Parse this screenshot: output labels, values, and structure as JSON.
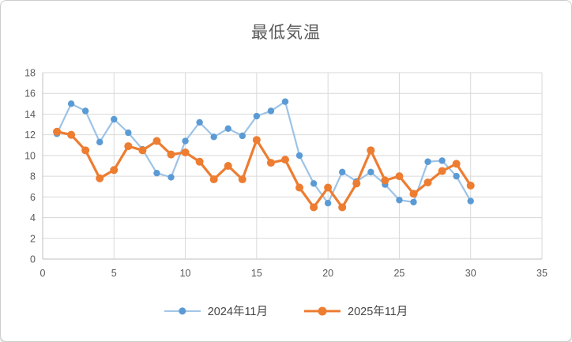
{
  "chart_data": {
    "type": "line",
    "title": "最低気温",
    "x": [
      1,
      2,
      3,
      4,
      5,
      6,
      7,
      8,
      9,
      10,
      11,
      12,
      13,
      14,
      15,
      16,
      17,
      18,
      19,
      20,
      21,
      22,
      23,
      24,
      25,
      26,
      27,
      28,
      29,
      30
    ],
    "series": [
      {
        "name": "2024年11月",
        "line_color": "#9DC3E6",
        "marker_color": "#5B9BD5",
        "values": [
          12.1,
          15.0,
          14.3,
          11.3,
          13.5,
          12.2,
          10.6,
          8.3,
          7.9,
          11.4,
          13.2,
          11.8,
          12.6,
          11.9,
          13.8,
          14.3,
          15.2,
          10.0,
          7.3,
          5.4,
          8.4,
          7.5,
          8.4,
          7.2,
          5.7,
          5.5,
          9.4,
          9.5,
          8.0,
          5.6
        ]
      },
      {
        "name": "2025年11月",
        "line_color": "#ED7D31",
        "marker_color": "#ED7D31",
        "values": [
          12.3,
          12.0,
          10.5,
          7.8,
          8.6,
          10.9,
          10.5,
          11.4,
          10.1,
          10.3,
          9.4,
          7.7,
          9.0,
          7.7,
          11.5,
          9.3,
          9.6,
          6.9,
          5.0,
          6.9,
          5.0,
          7.3,
          10.5,
          7.6,
          8.0,
          6.3,
          7.4,
          8.5,
          9.2,
          7.1
        ]
      }
    ],
    "xlim": [
      0,
      35
    ],
    "ylim": [
      0,
      18
    ],
    "x_ticks": [
      0,
      5,
      10,
      15,
      20,
      25,
      30,
      35
    ],
    "y_ticks": [
      0,
      2,
      4,
      6,
      8,
      10,
      12,
      14,
      16,
      18
    ],
    "grid": "on",
    "legend_position": "bottom",
    "grid_color": "#D9D9D9",
    "axis_color": "#BFBFBF",
    "tick_label_color": "#595959",
    "title_color": "#595959"
  }
}
